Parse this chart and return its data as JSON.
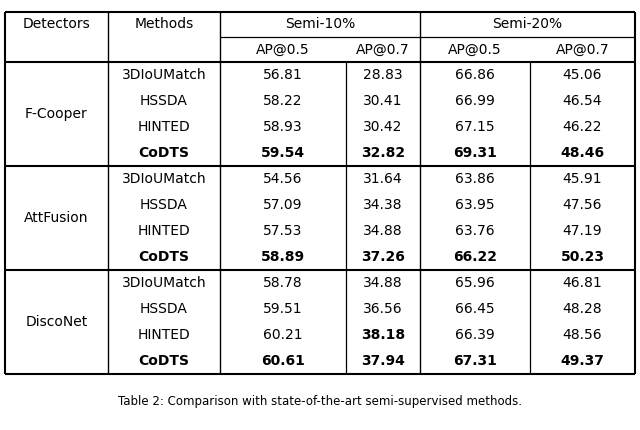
{
  "detectors": [
    "F-Cooper",
    "AttFusion",
    "DiscoNet"
  ],
  "methods": [
    "3DIoUMatch",
    "HSSDA",
    "HINTED",
    "CoDTS"
  ],
  "data": {
    "F-Cooper": {
      "3DIoUMatch": [
        "56.81",
        "28.83",
        "66.86",
        "45.06"
      ],
      "HSSDA": [
        "58.22",
        "30.41",
        "66.99",
        "46.54"
      ],
      "HINTED": [
        "58.93",
        "30.42",
        "67.15",
        "46.22"
      ],
      "CoDTS": [
        "59.54",
        "32.82",
        "69.31",
        "48.46"
      ]
    },
    "AttFusion": {
      "3DIoUMatch": [
        "54.56",
        "31.64",
        "63.86",
        "45.91"
      ],
      "HSSDA": [
        "57.09",
        "34.38",
        "63.95",
        "47.56"
      ],
      "HINTED": [
        "57.53",
        "34.88",
        "63.76",
        "47.19"
      ],
      "CoDTS": [
        "58.89",
        "37.26",
        "66.22",
        "50.23"
      ]
    },
    "DiscoNet": {
      "3DIoUMatch": [
        "58.78",
        "34.88",
        "65.96",
        "46.81"
      ],
      "HSSDA": [
        "59.51",
        "36.56",
        "66.45",
        "48.28"
      ],
      "HINTED": [
        "60.21",
        "38.18",
        "66.39",
        "48.56"
      ],
      "CoDTS": [
        "60.61",
        "37.94",
        "67.31",
        "49.37"
      ]
    }
  },
  "bold_cells": {
    "F-Cooper": {
      "CoDTS": [
        true,
        true,
        true,
        true
      ]
    },
    "AttFusion": {
      "CoDTS": [
        true,
        true,
        true,
        true
      ]
    },
    "DiscoNet": {
      "HINTED": [
        false,
        true,
        false,
        false
      ],
      "CoDTS": [
        true,
        false,
        true,
        true
      ]
    }
  },
  "caption": "Table 2: Comparison with state-of-the-art semi-supervised methods.",
  "background_color": "#ffffff",
  "font_size": 10.0,
  "caption_font_size": 8.5
}
